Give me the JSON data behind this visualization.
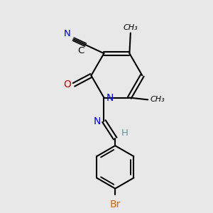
{
  "bg_color": "#e8e8e8",
  "atom_colors": {
    "C": "#000000",
    "N": "#0000cc",
    "O": "#cc0000",
    "Br": "#cc6600",
    "H": "#5a9a9a",
    "CN_label": "#0000cc"
  },
  "bond_color": "#000000",
  "bond_width": 1.5
}
